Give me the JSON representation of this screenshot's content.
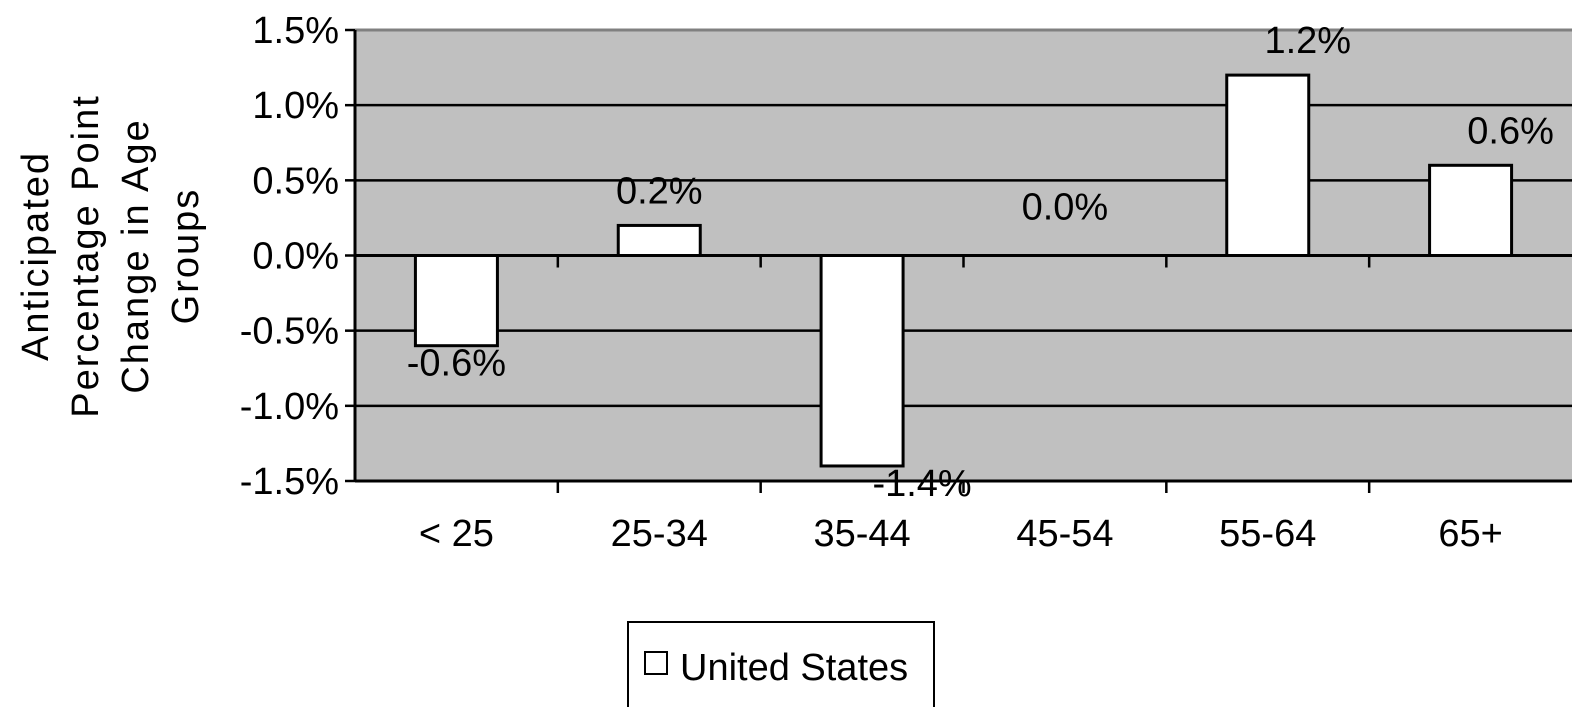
{
  "chart_data": {
    "type": "bar",
    "categories": [
      "< 25",
      "25-34",
      "35-44",
      "45-54",
      "55-64",
      "65+"
    ],
    "series": [
      {
        "name": "United States",
        "values": [
          -0.6,
          0.2,
          -1.4,
          0.0,
          1.2,
          0.6
        ]
      }
    ],
    "data_labels": [
      "-0.6%",
      "0.2%",
      "-1.4%",
      "0.0%",
      "1.2%",
      "0.6%"
    ],
    "ylabel_lines": [
      "Anticipated",
      "Percentage Point",
      "Change in Age",
      "Groups"
    ],
    "yticks": [
      1.5,
      1.0,
      0.5,
      0.0,
      -0.5,
      -1.0,
      -1.5
    ],
    "ytick_labels": [
      "1.5%",
      "1.0%",
      "0.5%",
      "0.0%",
      "-0.5%",
      "-1.0%",
      "-1.5%"
    ],
    "ylim": [
      -1.5,
      1.5
    ],
    "grid": true,
    "legend_position": "bottom",
    "colors": {
      "plot_background": "#c0c0c0",
      "bar_fill": "#ffffff",
      "bar_stroke": "#000000",
      "grid": "#000000"
    }
  }
}
